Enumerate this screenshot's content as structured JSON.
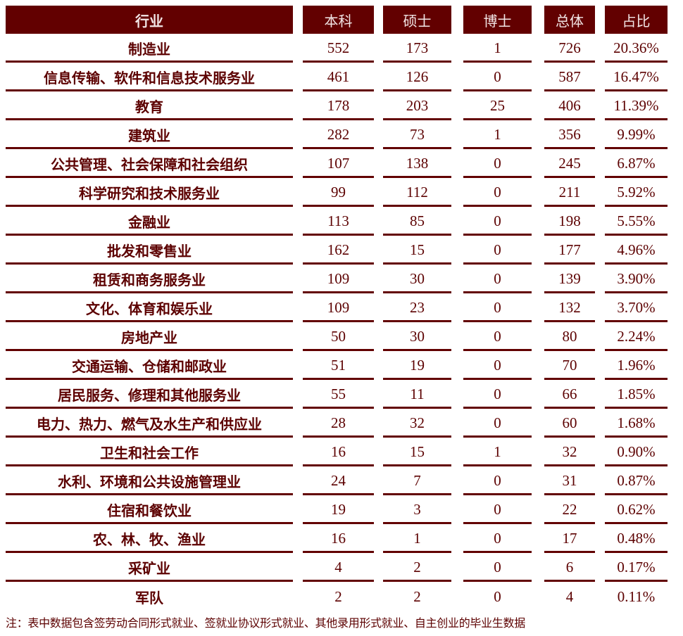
{
  "table": {
    "headers": [
      "行业",
      "本科",
      "硕士",
      "博士",
      "总体",
      "占比"
    ],
    "rows": [
      {
        "industry": "制造业",
        "bachelor": "552",
        "master": "173",
        "doctor": "1",
        "total": "726",
        "share": "20.36%"
      },
      {
        "industry": "信息传输、软件和信息技术服务业",
        "bachelor": "461",
        "master": "126",
        "doctor": "0",
        "total": "587",
        "share": "16.47%"
      },
      {
        "industry": "教育",
        "bachelor": "178",
        "master": "203",
        "doctor": "25",
        "total": "406",
        "share": "11.39%"
      },
      {
        "industry": "建筑业",
        "bachelor": "282",
        "master": "73",
        "doctor": "1",
        "total": "356",
        "share": "9.99%"
      },
      {
        "industry": "公共管理、社会保障和社会组织",
        "bachelor": "107",
        "master": "138",
        "doctor": "0",
        "total": "245",
        "share": "6.87%"
      },
      {
        "industry": "科学研究和技术服务业",
        "bachelor": "99",
        "master": "112",
        "doctor": "0",
        "total": "211",
        "share": "5.92%"
      },
      {
        "industry": "金融业",
        "bachelor": "113",
        "master": "85",
        "doctor": "0",
        "total": "198",
        "share": "5.55%"
      },
      {
        "industry": "批发和零售业",
        "bachelor": "162",
        "master": "15",
        "doctor": "0",
        "total": "177",
        "share": "4.96%"
      },
      {
        "industry": "租赁和商务服务业",
        "bachelor": "109",
        "master": "30",
        "doctor": "0",
        "total": "139",
        "share": "3.90%"
      },
      {
        "industry": "文化、体育和娱乐业",
        "bachelor": "109",
        "master": "23",
        "doctor": "0",
        "total": "132",
        "share": "3.70%"
      },
      {
        "industry": "房地产业",
        "bachelor": "50",
        "master": "30",
        "doctor": "0",
        "total": "80",
        "share": "2.24%"
      },
      {
        "industry": "交通运输、仓储和邮政业",
        "bachelor": "51",
        "master": "19",
        "doctor": "0",
        "total": "70",
        "share": "1.96%"
      },
      {
        "industry": "居民服务、修理和其他服务业",
        "bachelor": "55",
        "master": "11",
        "doctor": "0",
        "total": "66",
        "share": "1.85%"
      },
      {
        "industry": "电力、热力、燃气及水生产和供应业",
        "bachelor": "28",
        "master": "32",
        "doctor": "0",
        "total": "60",
        "share": "1.68%"
      },
      {
        "industry": "卫生和社会工作",
        "bachelor": "16",
        "master": "15",
        "doctor": "1",
        "total": "32",
        "share": "0.90%"
      },
      {
        "industry": "水利、环境和公共设施管理业",
        "bachelor": "24",
        "master": "7",
        "doctor": "0",
        "total": "31",
        "share": "0.87%"
      },
      {
        "industry": "住宿和餐饮业",
        "bachelor": "19",
        "master": "3",
        "doctor": "0",
        "total": "22",
        "share": "0.62%"
      },
      {
        "industry": "农、林、牧、渔业",
        "bachelor": "16",
        "master": "1",
        "doctor": "0",
        "total": "17",
        "share": "0.48%"
      },
      {
        "industry": "采矿业",
        "bachelor": "4",
        "master": "2",
        "doctor": "0",
        "total": "6",
        "share": "0.17%"
      },
      {
        "industry": "军队",
        "bachelor": "2",
        "master": "2",
        "doctor": "0",
        "total": "4",
        "share": "0.11%"
      }
    ]
  },
  "note": "注：表中数据包含签劳动合同形式就业、签就业协议形式就业、其他录用形式就业、自主创业的毕业生数据",
  "colors": {
    "header_bg": "#620000",
    "header_text": "#f2e6e6",
    "body_text": "#5c0000",
    "rule": "#620000"
  }
}
